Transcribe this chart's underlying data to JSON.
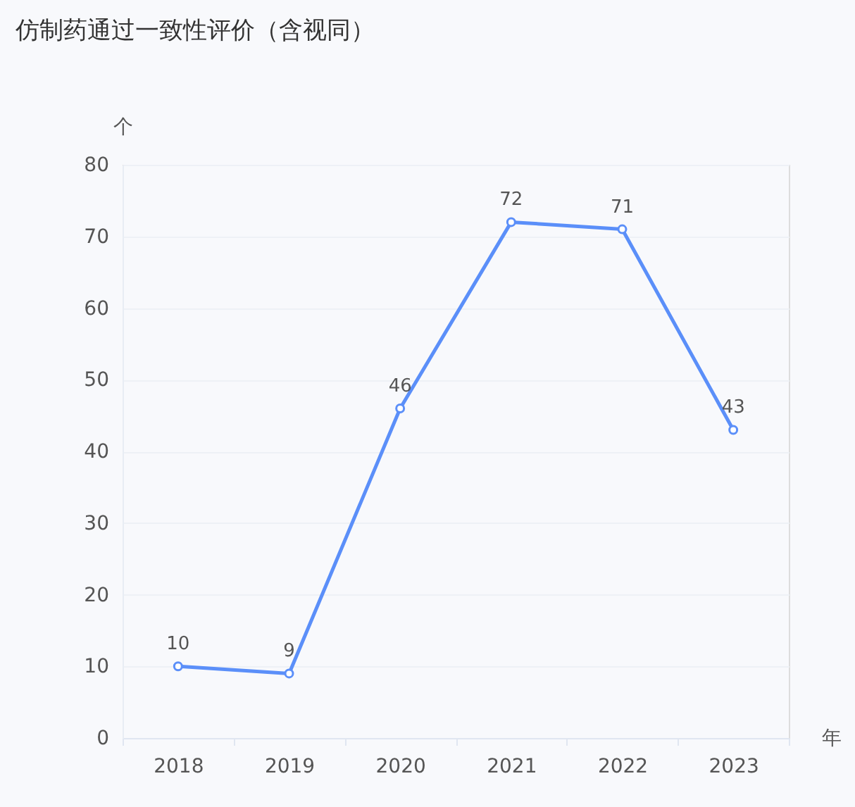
{
  "chart_data": {
    "type": "line",
    "title": "仿制药通过一致性评价（含视同）",
    "ylabel": "个",
    "xlabel": "年",
    "categories": [
      "2018",
      "2019",
      "2020",
      "2021",
      "2022",
      "2023"
    ],
    "series": [
      {
        "color": "#5b8ff9",
        "values": [
          10,
          9,
          46,
          72,
          71,
          43
        ]
      }
    ],
    "ylim": [
      0,
      80
    ],
    "yticks": [
      0,
      10,
      20,
      30,
      40,
      50,
      60,
      70,
      80
    ],
    "grid": "y",
    "marker": "circle",
    "line_style": "solid",
    "data_labels": true
  }
}
